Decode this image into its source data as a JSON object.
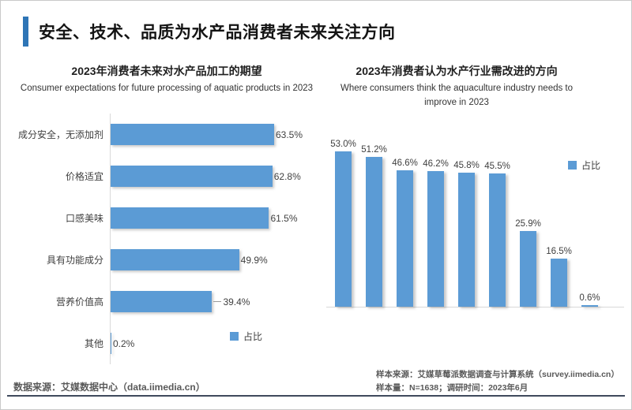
{
  "header": {
    "title": "安全、技术、品质为水产品消费者未来关注方向"
  },
  "colors": {
    "accent_bar": "#2E75B6",
    "bar_fill": "#5B9BD5",
    "axis_line": "#D9D9D9",
    "value_label_text": "#404040",
    "source_text": "#595959"
  },
  "chart_data": [
    {
      "type": "bar",
      "orientation": "horizontal",
      "title": "2023年消费者未来对水产品加工的期望",
      "subtitle": "Consumer expectations for future processing of aquatic products in 2023",
      "legend": "占比",
      "legend_position": "below-plot-right",
      "grid": false,
      "xlim": [
        0,
        65
      ],
      "categories": [
        "成分安全，无添加剂",
        "价格适宜",
        "口感美味",
        "具有功能成分",
        "营养价值高",
        "其他"
      ],
      "values": [
        63.5,
        62.8,
        61.5,
        49.9,
        39.4,
        0.2
      ],
      "labels": [
        "63.5%",
        "62.8%",
        "61.5%",
        "49.9%",
        "39.4%",
        "0.2%"
      ],
      "leader_line_indices": [
        4
      ]
    },
    {
      "type": "bar",
      "orientation": "vertical",
      "title": "2023年消费者认为水产行业需改进的方向",
      "subtitle": "Where consumers think the aquaculture industry needs to improve in 2023",
      "legend": "占比",
      "legend_position": "right-of-plot",
      "grid": false,
      "ylim": [
        0,
        60
      ],
      "categories": [
        "",
        "",
        "",
        "",
        "",
        "",
        "",
        "",
        ""
      ],
      "values": [
        53.0,
        51.2,
        46.6,
        46.2,
        45.8,
        45.5,
        25.9,
        16.5,
        0.6
      ],
      "labels": [
        "53.0%",
        "51.2%",
        "46.6%",
        "46.2%",
        "45.8%",
        "45.5%",
        "25.9%",
        "16.5%",
        "0.6%"
      ]
    }
  ],
  "footer": {
    "data_source": "数据来源：艾媒数据中心（data.iimedia.cn）",
    "sample_source": "样本来源：艾媒草莓派数据调查与计算系统（survey.iimedia.cn）",
    "sample_info": "样本量：N=1638；调研时间：2023年6月"
  }
}
